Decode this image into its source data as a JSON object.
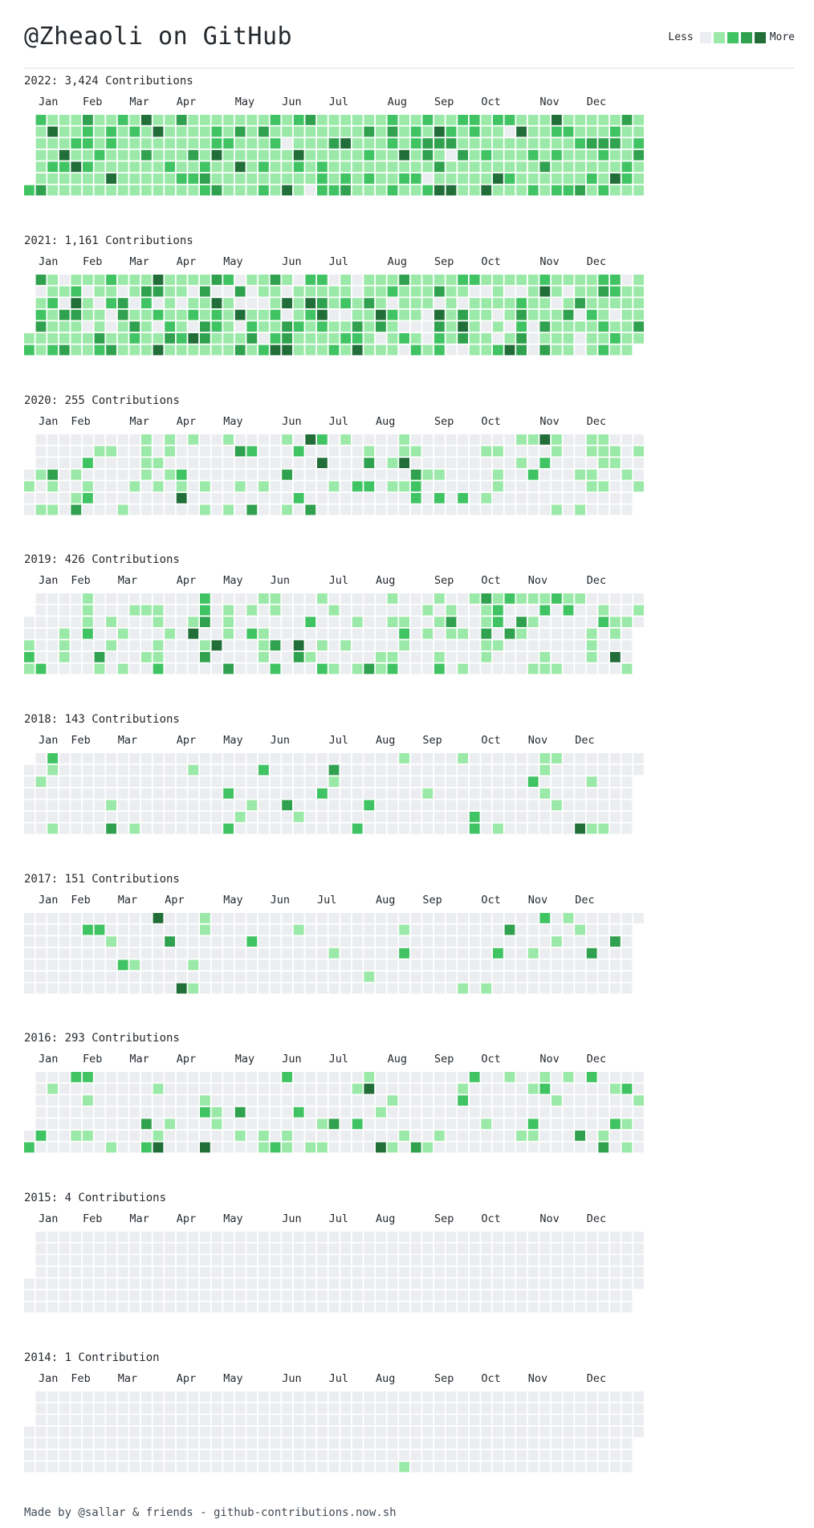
{
  "page": {
    "title": "@Zheaoli on GitHub",
    "legend_less": "Less",
    "legend_more": "More",
    "footer": "Made by @sallar & friends - github-contributions.now.sh"
  },
  "colors": {
    "empty": "#ebedf0",
    "levels": [
      "#ebedf0",
      "#9be9a8",
      "#40c463",
      "#30a14e",
      "#216e39"
    ]
  },
  "month_names": [
    "Jan",
    "Feb",
    "Mar",
    "Apr",
    "May",
    "Jun",
    "Jul",
    "Aug",
    "Sep",
    "Oct",
    "Nov",
    "Dec"
  ],
  "years": [
    {
      "year": 2022,
      "label": "2022: 3,424 Contributions"
    },
    {
      "year": 2021,
      "label": "2021: 1,161 Contributions"
    },
    {
      "year": 2020,
      "label": "2020: 255 Contributions"
    },
    {
      "year": 2019,
      "label": "2019: 426 Contributions"
    },
    {
      "year": 2018,
      "label": "2018: 143 Contributions"
    },
    {
      "year": 2017,
      "label": "2017: 151 Contributions"
    },
    {
      "year": 2016,
      "label": "2016: 293 Contributions"
    },
    {
      "year": 2015,
      "label": "2015: 4 Contributions"
    },
    {
      "year": 2014,
      "label": "2014: 1 Contribution"
    }
  ]
}
